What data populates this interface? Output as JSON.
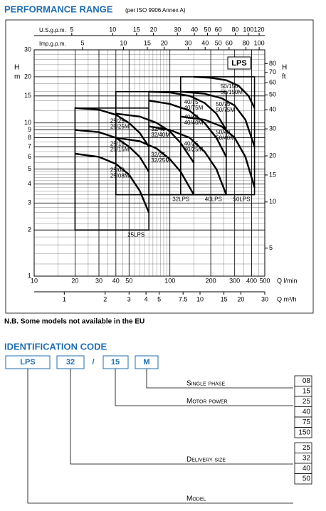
{
  "header": {
    "title": "PERFORMANCE RANGE",
    "subtitle": "(per ISO 9906 Annex A)"
  },
  "chart_data": {
    "type": "line",
    "tag": "LPS",
    "xscale": "log",
    "yscale": "log",
    "xlabel": "Q l/min",
    "ylabel": "H",
    "yunit": "m",
    "y2label": "H",
    "y2unit": "ft",
    "xlim": [
      10,
      500
    ],
    "xticks": [
      10,
      20,
      30,
      40,
      50,
      100,
      200,
      300,
      400,
      500
    ],
    "ylim": [
      1,
      30
    ],
    "yticks": [
      1,
      2,
      3,
      4,
      5,
      6,
      7,
      8,
      9,
      10,
      15,
      20,
      30
    ],
    "y2lim": [
      3.281,
      98.43
    ],
    "y2ticks": [
      5,
      10,
      15,
      20,
      30,
      40,
      50,
      60,
      70,
      80
    ],
    "x2label": "U.S.g.p.m.",
    "x2lim": [
      2.642,
      132.1
    ],
    "x2ticks": [
      5,
      10,
      15,
      20,
      30,
      40,
      50,
      60,
      80,
      100,
      120
    ],
    "x3label": "Imp.g.p.m.",
    "x3lim": [
      2.2,
      110
    ],
    "x3ticks": [
      5,
      10,
      15,
      20,
      30,
      40,
      50,
      60,
      80,
      100
    ],
    "x4label": "Q m³/h",
    "x4lim": [
      0.6,
      30
    ],
    "x4ticks": [
      1,
      2,
      3,
      4,
      5,
      7.5,
      10,
      15,
      20,
      30
    ],
    "grid": true,
    "color": "#000000",
    "families": [
      {
        "name": "25LPS",
        "qlim": [
          20,
          70
        ],
        "hlim": [
          2,
          12.5
        ]
      },
      {
        "name": "32LPS",
        "qlim": [
          40,
          150
        ],
        "hlim": [
          3.4,
          16
        ]
      },
      {
        "name": "40LPS",
        "qlim": [
          70,
          260
        ],
        "hlim": [
          3.4,
          16
        ]
      },
      {
        "name": "50LPS",
        "qlim": [
          120,
          420
        ],
        "hlim": [
          3.4,
          20
        ]
      }
    ],
    "curves": [
      {
        "names": [
          "25/08",
          "25/08M"
        ],
        "q": [
          20,
          30,
          40,
          50,
          60,
          70
        ],
        "h": [
          6.3,
          6.0,
          5.4,
          4.6,
          3.6,
          2.6
        ]
      },
      {
        "names": [
          "25/15",
          "25/15M"
        ],
        "q": [
          20,
          30,
          40,
          50,
          60,
          70
        ],
        "h": [
          9,
          8.7,
          8,
          7,
          6,
          4.8
        ]
      },
      {
        "names": [
          "25/25",
          "25/25M"
        ],
        "q": [
          20,
          30,
          40,
          50,
          60,
          70
        ],
        "h": [
          12.5,
          12.2,
          11.3,
          10,
          8.6,
          7
        ]
      },
      {
        "names": [
          "32/25",
          "32/25M"
        ],
        "q": [
          40,
          60,
          80,
          100,
          120,
          150
        ],
        "h": [
          8,
          7.6,
          6.8,
          5.8,
          4.8,
          3.4
        ]
      },
      {
        "names": [
          "32/40",
          "32/40M"
        ],
        "q": [
          40,
          60,
          80,
          100,
          120,
          150
        ],
        "h": [
          11.5,
          11,
          10,
          8.8,
          7.4,
          5.5
        ]
      },
      {
        "names": [
          "40/25",
          "40/25M"
        ],
        "q": [
          70,
          100,
          140,
          180,
          220,
          260
        ],
        "h": [
          9.5,
          9,
          8,
          6.5,
          5,
          3.4
        ]
      },
      {
        "names": [
          "40/40",
          "40/40M"
        ],
        "q": [
          70,
          100,
          140,
          180,
          220,
          260
        ],
        "h": [
          14,
          13.3,
          12,
          10,
          8,
          6
        ]
      },
      {
        "names": [
          "40/75",
          "40/75M"
        ],
        "q": [
          70,
          100,
          140,
          180,
          220,
          260
        ],
        "h": [
          16,
          15.8,
          15,
          13.5,
          11.5,
          9
        ]
      },
      {
        "names": [
          "50/40",
          "50/40M"
        ],
        "q": [
          120,
          180,
          240,
          300,
          360,
          420
        ],
        "h": [
          11,
          10.5,
          9.5,
          8,
          6,
          3.8
        ]
      },
      {
        "names": [
          "50/75",
          "50/75M"
        ],
        "q": [
          120,
          180,
          240,
          300,
          360,
          420
        ],
        "h": [
          16,
          15.5,
          14.5,
          13,
          10.5,
          7
        ]
      },
      {
        "names": [
          "50/150",
          "50/150M"
        ],
        "q": [
          150,
          200,
          260,
          320,
          380,
          420
        ],
        "h": [
          20,
          19.7,
          19,
          17.5,
          15,
          12.5
        ]
      }
    ]
  },
  "note": "N.B. Some models not available in the EU",
  "identification": {
    "title": "IDENTIFICATION CODE",
    "code": [
      "LPS",
      "32",
      "/",
      "15",
      "M"
    ],
    "fields": [
      "Single phase",
      "Motor power",
      "Delivery size",
      "Model"
    ],
    "motor_options": [
      "08",
      "15",
      "25",
      "40",
      "75",
      "150"
    ],
    "delivery_options": [
      "25",
      "32",
      "40",
      "50"
    ]
  }
}
